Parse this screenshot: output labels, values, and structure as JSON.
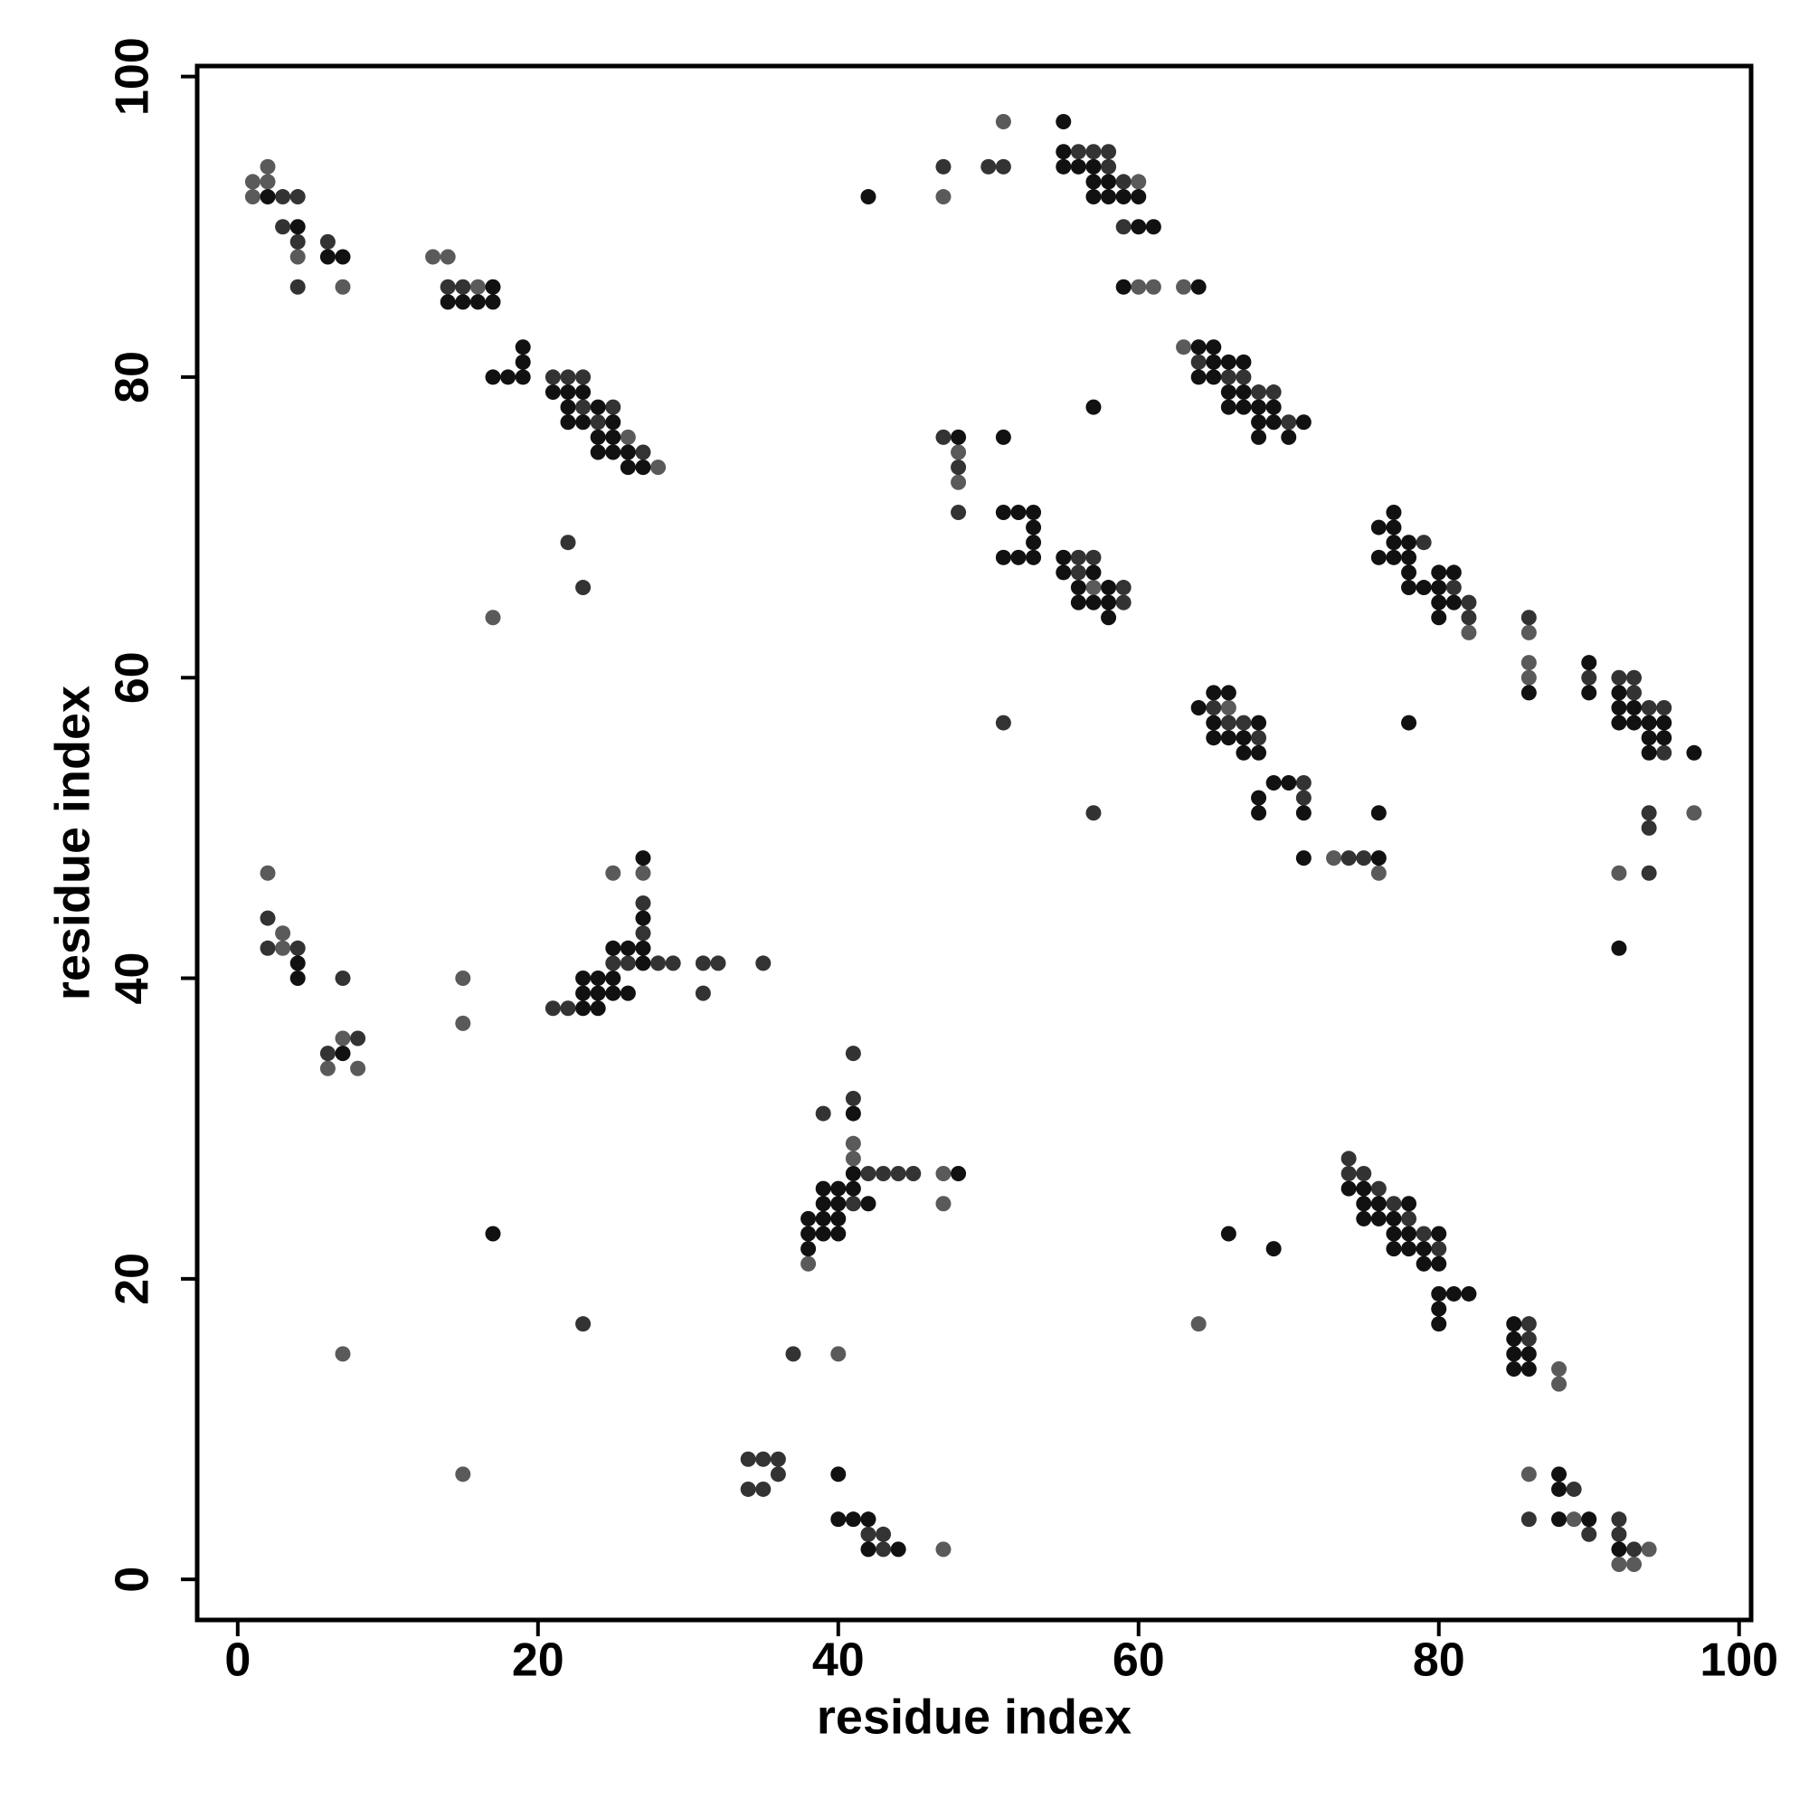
{
  "chart_data": {
    "type": "scatter",
    "xlabel": "residue index",
    "ylabel": "residue index",
    "xlim": [
      -2.7,
      100.8
    ],
    "ylim": [
      -2.7,
      100.7
    ],
    "xticks": [
      0,
      20,
      40,
      60,
      80,
      100
    ],
    "yticks": [
      0,
      20,
      40,
      60,
      80,
      100
    ],
    "series": [
      {
        "color": "#5a5a5a",
        "x": [
          1,
          2,
          2,
          1,
          4,
          7,
          13,
          14,
          16,
          26,
          28,
          17,
          2,
          3,
          3,
          6,
          8,
          7,
          15,
          15,
          7,
          15,
          25,
          27,
          38,
          41,
          41,
          47,
          47,
          40,
          47,
          47,
          51,
          60,
          60,
          61,
          63,
          48,
          48,
          57,
          63,
          82,
          86,
          86,
          86,
          97,
          92,
          76,
          64,
          88,
          88,
          86,
          89,
          94,
          92,
          93,
          73,
          66
        ],
        "values": [
          93,
          93,
          94,
          92,
          88,
          86,
          88,
          88,
          86,
          76,
          74,
          64,
          47,
          43,
          42,
          34,
          34,
          36,
          40,
          37,
          15,
          7,
          47,
          47,
          21,
          28,
          29,
          27,
          25,
          15,
          2,
          92,
          97,
          93,
          86,
          86,
          86,
          75,
          73,
          66,
          82,
          63,
          63,
          61,
          60,
          51,
          47,
          47,
          17,
          14,
          13,
          7,
          4,
          2,
          1,
          1,
          48,
          58
        ]
      },
      {
        "color": "#333333",
        "x": [
          3,
          4,
          3,
          4,
          4,
          6,
          14,
          15,
          22,
          23,
          21,
          25,
          24,
          27,
          22,
          23,
          2,
          2,
          4,
          7,
          6,
          8,
          23,
          21,
          22,
          25,
          26,
          28,
          29,
          27,
          27,
          31,
          32,
          31,
          35,
          39,
          41,
          41,
          42,
          43,
          44,
          45,
          41,
          37,
          34,
          35,
          36,
          36,
          34,
          35,
          42,
          43,
          43,
          47,
          50,
          51,
          56,
          57,
          58,
          58,
          59,
          59,
          47,
          48,
          48,
          51,
          57,
          56,
          57,
          56,
          59,
          59,
          64,
          66,
          67,
          68,
          69,
          70,
          79,
          81,
          82,
          82,
          86,
          90,
          92,
          93,
          93,
          94,
          95,
          95,
          94,
          94,
          94,
          65,
          66,
          67,
          68,
          71,
          71,
          74,
          75,
          74,
          74,
          75,
          76,
          77,
          78,
          79,
          80,
          86,
          86,
          86,
          89,
          92,
          90,
          92,
          93,
          23
        ],
        "values": [
          92,
          92,
          90,
          89,
          86,
          89,
          86,
          86,
          80,
          80,
          80,
          78,
          77,
          75,
          69,
          66,
          44,
          42,
          42,
          40,
          35,
          36,
          17,
          38,
          38,
          41,
          41,
          41,
          41,
          45,
          43,
          41,
          41,
          39,
          41,
          31,
          32,
          35,
          27,
          27,
          27,
          27,
          25,
          15,
          8,
          8,
          8,
          7,
          6,
          6,
          3,
          3,
          2,
          94,
          94,
          94,
          95,
          95,
          95,
          94,
          93,
          90,
          76,
          74,
          71,
          57,
          51,
          68,
          68,
          67,
          66,
          65,
          81,
          80,
          80,
          79,
          79,
          77,
          69,
          66,
          65,
          64,
          64,
          60,
          60,
          60,
          59,
          58,
          58,
          55,
          51,
          50,
          47,
          58,
          57,
          57,
          56,
          53,
          52,
          48,
          48,
          28,
          27,
          27,
          26,
          25,
          24,
          23,
          22,
          17,
          16,
          4,
          6,
          4,
          3,
          3,
          2,
          78
        ]
      },
      {
        "color": "#111111",
        "x": [
          2,
          4,
          6,
          7,
          17,
          14,
          15,
          16,
          17,
          17,
          18,
          19,
          19,
          19,
          21,
          22,
          23,
          22,
          24,
          22,
          23,
          25,
          24,
          25,
          24,
          25,
          26,
          26,
          27,
          4,
          4,
          7,
          17,
          23,
          24,
          23,
          24,
          25,
          26,
          23,
          24,
          25,
          27,
          25,
          26,
          27,
          27,
          27,
          38,
          39,
          38,
          39,
          40,
          38,
          39,
          40,
          40,
          39,
          40,
          41,
          42,
          41,
          48,
          41,
          40,
          40,
          41,
          42,
          42,
          44,
          42,
          55,
          55,
          55,
          56,
          57,
          57,
          58,
          57,
          58,
          59,
          60,
          60,
          61,
          59,
          64,
          57,
          48,
          51,
          51,
          52,
          53,
          53,
          53,
          51,
          52,
          53,
          55,
          55,
          57,
          56,
          58,
          56,
          57,
          58,
          58,
          64,
          65,
          65,
          66,
          67,
          64,
          65,
          66,
          67,
          66,
          67,
          68,
          69,
          68,
          69,
          71,
          68,
          70,
          77,
          76,
          77,
          77,
          78,
          76,
          77,
          78,
          78,
          80,
          81,
          78,
          79,
          80,
          80,
          81,
          80,
          86,
          90,
          90,
          92,
          92,
          93,
          92,
          93,
          94,
          95,
          94,
          95,
          94,
          97,
          92,
          78,
          64,
          65,
          66,
          65,
          68,
          65,
          66,
          67,
          67,
          68,
          69,
          70,
          68,
          68,
          71,
          71,
          76,
          76,
          74,
          75,
          75,
          76,
          78,
          75,
          76,
          77,
          77,
          78,
          80,
          77,
          78,
          79,
          79,
          80,
          80,
          81,
          82,
          80,
          80,
          66,
          69,
          85,
          85,
          85,
          86,
          85,
          86,
          88,
          88,
          88,
          90,
          92
        ],
        "values": [
          92,
          90,
          88,
          88,
          86,
          85,
          85,
          85,
          85,
          80,
          80,
          80,
          82,
          81,
          79,
          79,
          79,
          78,
          78,
          77,
          77,
          77,
          76,
          76,
          75,
          75,
          75,
          74,
          74,
          41,
          40,
          35,
          23,
          38,
          38,
          39,
          39,
          39,
          39,
          40,
          40,
          40,
          41,
          42,
          42,
          42,
          44,
          48,
          24,
          24,
          23,
          23,
          23,
          22,
          25,
          25,
          24,
          26,
          26,
          26,
          25,
          27,
          27,
          31,
          7,
          4,
          4,
          4,
          2,
          2,
          92,
          97,
          95,
          94,
          94,
          94,
          93,
          93,
          92,
          92,
          92,
          92,
          90,
          90,
          86,
          86,
          78,
          76,
          76,
          71,
          71,
          71,
          70,
          69,
          68,
          68,
          68,
          68,
          67,
          67,
          66,
          66,
          65,
          65,
          65,
          64,
          82,
          82,
          81,
          81,
          81,
          80,
          80,
          79,
          79,
          78,
          78,
          78,
          78,
          77,
          77,
          77,
          76,
          76,
          71,
          70,
          70,
          69,
          69,
          68,
          68,
          68,
          67,
          67,
          67,
          66,
          66,
          66,
          65,
          65,
          64,
          59,
          61,
          59,
          59,
          58,
          58,
          57,
          57,
          57,
          57,
          56,
          56,
          55,
          55,
          42,
          57,
          58,
          59,
          59,
          57,
          57,
          56,
          56,
          56,
          55,
          55,
          53,
          53,
          52,
          51,
          51,
          48,
          48,
          51,
          26,
          26,
          25,
          25,
          25,
          24,
          24,
          24,
          23,
          23,
          23,
          22,
          22,
          22,
          21,
          21,
          19,
          19,
          19,
          18,
          17,
          23,
          22,
          17,
          16,
          15,
          15,
          14,
          14,
          7,
          6,
          4,
          4,
          2
        ]
      }
    ]
  }
}
